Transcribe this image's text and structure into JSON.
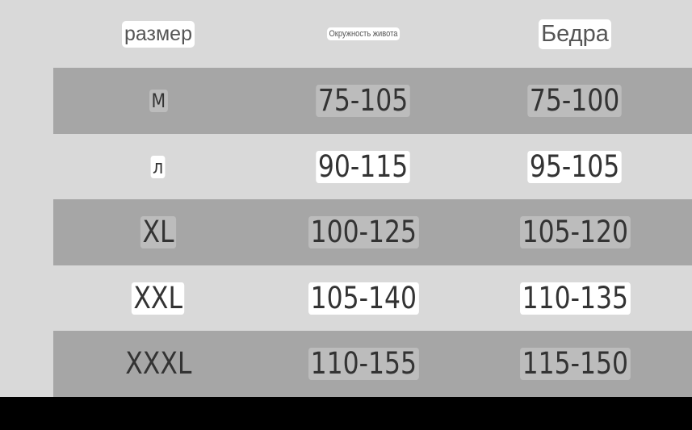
{
  "table": {
    "headers": [
      "размер",
      "Окружность живота",
      "Бедра"
    ],
    "rows": [
      [
        "M",
        "75-105",
        "75-100"
      ],
      [
        "л",
        "90-115",
        "95-105"
      ],
      [
        "XL",
        "100-125",
        "105-120"
      ],
      [
        "XXL",
        "105-140",
        "110-135"
      ],
      [
        "XXXL",
        "110-155",
        "115-150"
      ]
    ]
  },
  "colors": {
    "background": "#d9d9d9",
    "stripe": "#a6a6a6",
    "text": "#333333"
  }
}
